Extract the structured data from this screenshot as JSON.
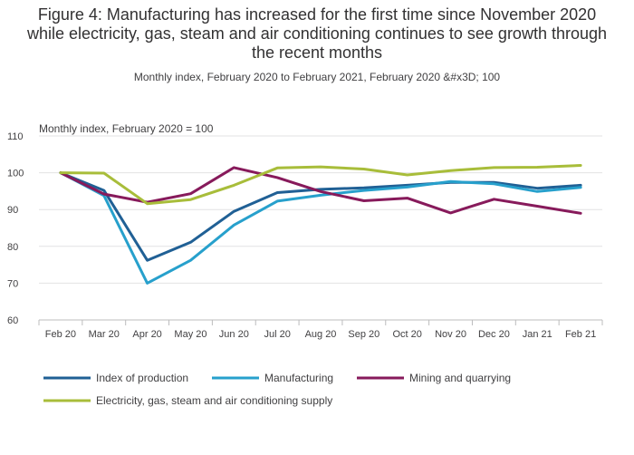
{
  "title": "Figure 4: Manufacturing has increased for the first time since November 2020 while electricity, gas, steam and air conditioning continues to see growth through the recent months",
  "subtitle": "Monthly index, February 2020 to February 2021, February 2020 &#x3D; 100",
  "chart_data": {
    "type": "line",
    "ylabel": "Monthly index, February 2020 = 100",
    "xlabel": "",
    "ylim": [
      60,
      110
    ],
    "yticks": [
      60,
      70,
      80,
      90,
      100,
      110
    ],
    "grid": true,
    "legend_position": "bottom",
    "categories": [
      "Feb 20",
      "Mar 20",
      "Apr 20",
      "May 20",
      "Jun 20",
      "Jul 20",
      "Aug 20",
      "Sep 20",
      "Oct 20",
      "Nov 20",
      "Dec 20",
      "Jan 21",
      "Feb 21"
    ],
    "series": [
      {
        "name": "Index of production",
        "color": "#206095",
        "values": [
          100,
          95.2,
          76.2,
          81.1,
          89.5,
          94.6,
          95.5,
          95.9,
          96.6,
          97.4,
          97.4,
          95.8,
          96.6
        ]
      },
      {
        "name": "Manufacturing",
        "color": "#27a0cc",
        "values": [
          100,
          93.8,
          70.0,
          76.2,
          85.8,
          92.3,
          93.9,
          95.2,
          96.1,
          97.6,
          97.0,
          94.9,
          96.0
        ]
      },
      {
        "name": "Mining and quarrying",
        "color": "#871a5b",
        "values": [
          100,
          94.2,
          92.0,
          94.3,
          101.4,
          98.7,
          94.9,
          92.4,
          93.1,
          89.1,
          92.8,
          90.9,
          89.0
        ]
      },
      {
        "name": "Electricity, gas, steam and air conditioning supply",
        "color": "#a8bd3a",
        "values": [
          100,
          99.9,
          91.6,
          92.7,
          96.6,
          101.3,
          101.6,
          101.0,
          99.4,
          100.6,
          101.4,
          101.5,
          102.0
        ]
      }
    ]
  }
}
